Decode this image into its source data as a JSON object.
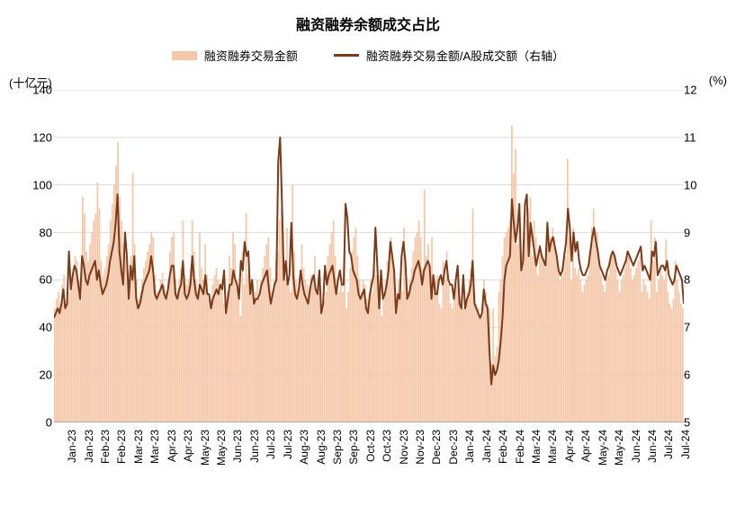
{
  "chart": {
    "title": "融资融券余额成交占比",
    "title_fontsize": 16,
    "left_axis_label": "(十亿元)",
    "right_axis_label": "(%)",
    "legend": {
      "bar_label": "融资融券交易金额",
      "line_label": "融资融券交易金额/A股成交额（右轴）"
    },
    "colors": {
      "bar": "#f4c7a8",
      "line": "#7a3b1a",
      "grid": "#d9d9d9",
      "axis": "#808080",
      "background": "#ffffff",
      "text": "#000000"
    },
    "left_y": {
      "min": 0,
      "max": 140,
      "ticks": [
        0,
        20,
        40,
        60,
        80,
        100,
        120,
        140
      ]
    },
    "right_y": {
      "min": 5,
      "max": 12,
      "ticks": [
        5,
        6,
        7,
        8,
        9,
        10,
        11,
        12
      ]
    },
    "x_labels": [
      "Jan-23",
      "Jan-23",
      "Feb-23",
      "Feb-23",
      "Mar-23",
      "Mar-23",
      "Apr-23",
      "Apr-23",
      "May-23",
      "May-23",
      "Jun-23",
      "Jun-23",
      "Jul-23",
      "Jul-23",
      "Aug-23",
      "Aug-23",
      "Sep-23",
      "Sep-23",
      "Oct-23",
      "Oct-23",
      "Nov-23",
      "Nov-23",
      "Dec-23",
      "Dec-23",
      "Jan-24",
      "Jan-24",
      "Feb-24",
      "Feb-24",
      "Mar-24",
      "Mar-24",
      "Apr-24",
      "Apr-24",
      "May-24",
      "May-24",
      "Jun-24",
      "Jun-24",
      "Jul-24",
      "Jul-24"
    ],
    "bar_values": [
      48,
      52,
      55,
      50,
      58,
      62,
      48,
      52,
      55,
      58,
      65,
      70,
      68,
      60,
      52,
      95,
      88,
      72,
      68,
      75,
      80,
      85,
      88,
      101,
      90,
      68,
      62,
      65,
      70,
      75,
      85,
      92,
      100,
      108,
      118,
      95,
      85,
      75,
      70,
      65,
      60,
      70,
      105,
      75,
      60,
      52,
      55,
      60,
      65,
      68,
      72,
      75,
      80,
      78,
      62,
      55,
      55,
      60,
      63,
      58,
      55,
      60,
      72,
      78,
      80,
      60,
      55,
      60,
      65,
      85,
      62,
      58,
      60,
      65,
      85,
      72,
      60,
      55,
      80,
      65,
      60,
      75,
      62,
      52,
      52,
      58,
      62,
      65,
      60,
      55,
      60,
      50,
      48,
      55,
      70,
      65,
      80,
      75,
      60,
      55,
      45,
      72,
      58,
      88,
      62,
      58,
      60,
      50,
      55,
      60,
      52,
      60,
      65,
      70,
      75,
      78,
      65,
      55,
      60,
      68,
      72,
      85,
      90,
      80,
      60,
      82,
      62,
      55,
      100,
      72,
      60,
      55,
      62,
      75,
      65,
      60,
      58,
      55,
      62,
      60,
      70,
      55,
      60,
      50,
      48,
      52,
      55,
      70,
      75,
      80,
      85,
      70,
      60,
      55,
      58,
      55,
      75,
      48,
      55,
      65,
      72,
      78,
      82,
      70,
      60,
      55,
      60,
      58,
      52,
      48,
      60,
      55,
      65,
      62,
      58,
      52,
      45,
      55,
      60,
      68,
      72,
      78,
      68,
      55,
      48,
      60,
      58,
      55,
      82,
      62,
      55,
      60,
      65,
      72,
      78,
      80,
      85,
      78,
      65,
      98,
      70,
      75,
      60,
      78,
      55,
      60,
      62,
      50,
      48,
      68,
      60,
      72,
      58,
      50,
      48,
      55,
      58,
      60,
      52,
      50,
      48,
      52,
      55,
      60,
      65,
      90,
      55,
      50,
      48,
      45,
      48,
      60,
      55,
      50,
      48,
      25,
      48,
      28,
      32,
      55,
      60,
      70,
      78,
      80,
      82,
      85,
      125,
      105,
      115,
      75,
      85,
      65,
      72,
      80,
      85,
      90,
      95,
      70,
      85,
      78,
      62,
      75,
      70,
      68,
      65,
      85,
      72,
      78,
      82,
      78,
      72,
      65,
      60,
      62,
      72,
      70,
      111,
      78,
      60,
      82,
      65,
      62,
      65,
      60,
      55,
      58,
      60,
      62,
      72,
      82,
      90,
      75,
      80,
      68,
      62,
      58,
      55,
      60,
      62,
      68,
      72,
      70,
      65,
      60,
      55,
      60,
      62,
      65,
      72,
      70,
      65,
      60,
      62,
      65,
      68,
      70,
      55,
      60,
      58,
      55,
      52,
      85,
      68,
      78,
      55,
      60,
      65,
      62,
      60,
      77,
      55,
      50,
      48,
      52,
      68,
      60,
      55,
      50,
      48
    ],
    "line_values": [
      7.2,
      7.3,
      7.4,
      7.3,
      7.5,
      7.8,
      7.4,
      7.5,
      8.6,
      7.8,
      8.1,
      8.3,
      8.2,
      7.9,
      7.6,
      8.5,
      8.3,
      8.0,
      7.9,
      8.1,
      8.2,
      8.3,
      8.4,
      8.0,
      8.2,
      7.9,
      7.7,
      7.8,
      7.9,
      8.1,
      8.4,
      8.6,
      8.8,
      9.2,
      9.8,
      8.6,
      8.2,
      7.9,
      9.0,
      8.5,
      7.6,
      8.3,
      8.0,
      8.5,
      7.6,
      7.4,
      7.5,
      7.7,
      7.9,
      8.0,
      8.1,
      8.2,
      8.5,
      8.2,
      7.7,
      7.6,
      7.7,
      7.8,
      7.9,
      7.7,
      7.6,
      7.8,
      8.1,
      8.3,
      8.3,
      7.7,
      7.6,
      7.8,
      7.9,
      8.4,
      7.7,
      7.6,
      7.7,
      7.9,
      8.5,
      8.0,
      7.7,
      7.6,
      7.9,
      7.8,
      7.7,
      8.1,
      7.7,
      7.7,
      7.4,
      7.6,
      7.7,
      7.8,
      7.7,
      7.9,
      7.8,
      8.2,
      7.3,
      7.6,
      7.9,
      7.9,
      8.2,
      8.0,
      7.9,
      7.6,
      8.4,
      8.2,
      8.8,
      8.5,
      8.6,
      7.7,
      8.0,
      7.5,
      7.6,
      7.6,
      7.7,
      7.9,
      8.0,
      8.1,
      8.2,
      7.8,
      7.5,
      7.7,
      7.9,
      8.0,
      10.5,
      11.0,
      9.6,
      8.0,
      8.4,
      7.9,
      8.1,
      9.2,
      8.1,
      7.7,
      7.6,
      7.8,
      8.2,
      7.9,
      7.7,
      7.6,
      7.5,
      7.8,
      8.0,
      8.1,
      7.8,
      7.7,
      8.2,
      7.3,
      7.5,
      8.3,
      7.9,
      8.1,
      8.2,
      8.3,
      8.0,
      7.7,
      8.0,
      8.2,
      7.9,
      7.9,
      9.6,
      9.3,
      8.6,
      8.5,
      8.2,
      8.1,
      8.0,
      7.7,
      7.6,
      7.7,
      7.8,
      7.4,
      7.3,
      7.7,
      7.9,
      8.1,
      9.1,
      8.3,
      7.4,
      8.2,
      7.6,
      7.7,
      7.9,
      8.2,
      8.8,
      8.5,
      8.2,
      7.3,
      7.7,
      7.6,
      8.5,
      8.8,
      8.4,
      7.6,
      7.7,
      7.9,
      8.0,
      8.2,
      8.3,
      8.4,
      8.2,
      7.9,
      8.2,
      8.3,
      8.4,
      8.3,
      7.6,
      8.1,
      7.7,
      7.7,
      8.0,
      8.1,
      7.9,
      8.2,
      8.4,
      8.0,
      7.9,
      7.9,
      7.6,
      8.0,
      8.3,
      7.5,
      7.4,
      8.1,
      7.4,
      7.6,
      7.7,
      7.9,
      8.4,
      7.5,
      7.4,
      7.3,
      7.2,
      7.3,
      7.8,
      7.5,
      7.4,
      6.5,
      5.8,
      6.2,
      6.0,
      6.1,
      6.3,
      6.7,
      7.2,
      8.0,
      8.3,
      8.4,
      8.5,
      9.7,
      9.2,
      8.8,
      9.1,
      9.6,
      8.2,
      8.4,
      9.6,
      9.8,
      8.5,
      9.2,
      8.9,
      8.6,
      8.3,
      8.5,
      8.7,
      8.5,
      8.4,
      8.3,
      9.2,
      8.6,
      8.8,
      8.9,
      8.7,
      8.5,
      8.2,
      8.1,
      8.2,
      8.5,
      8.8,
      9.5,
      9.1,
      8.4,
      9.0,
      8.6,
      8.8,
      8.4,
      8.2,
      8.1,
      8.1,
      8.2,
      8.3,
      8.6,
      8.9,
      9.1,
      8.8,
      8.6,
      8.3,
      8.2,
      8.1,
      8.0,
      8.2,
      8.3,
      8.5,
      8.6,
      8.5,
      8.3,
      8.2,
      8.1,
      8.2,
      8.3,
      8.4,
      8.6,
      8.5,
      8.4,
      8.3,
      8.4,
      8.5,
      8.6,
      8.7,
      8.2,
      8.3,
      8.2,
      8.1,
      8.0,
      8.6,
      8.5,
      8.8,
      8.1,
      8.2,
      8.3,
      8.3,
      8.2,
      8.4,
      8.1,
      8.0,
      7.9,
      8.0,
      8.3,
      8.2,
      8.1,
      8.0,
      7.5
    ],
    "line_width": 2
  }
}
